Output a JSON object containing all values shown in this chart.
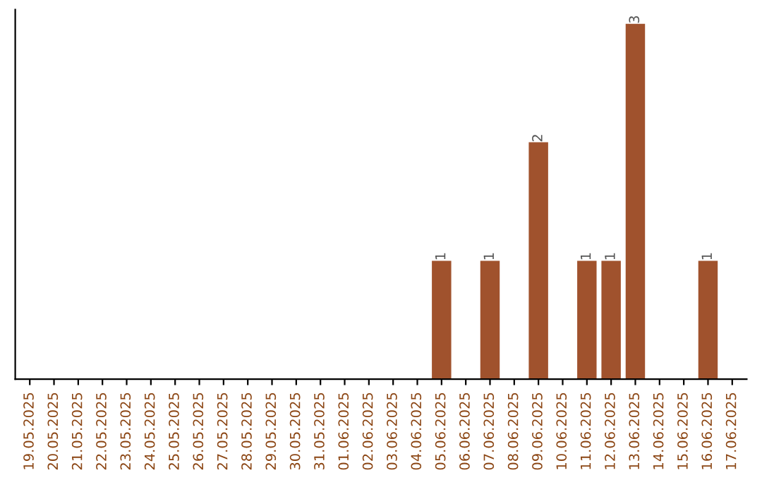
{
  "chart_data": {
    "type": "bar",
    "categories": [
      "19.05.2025",
      "20.05.2025",
      "21.05.2025",
      "22.05.2025",
      "23.05.2025",
      "24.05.2025",
      "25.05.2025",
      "26.05.2025",
      "27.05.2025",
      "28.05.2025",
      "29.05.2025",
      "30.05.2025",
      "31.05.2025",
      "01.06.2025",
      "02.06.2025",
      "03.06.2025",
      "04.06.2025",
      "05.06.2025",
      "06.06.2025",
      "07.06.2025",
      "08.06.2025",
      "09.06.2025",
      "10.06.2025",
      "11.06.2025",
      "12.06.2025",
      "13.06.2025",
      "14.06.2025",
      "15.06.2025",
      "16.06.2025",
      "17.06.2025"
    ],
    "values": [
      null,
      null,
      null,
      null,
      null,
      null,
      null,
      null,
      null,
      null,
      null,
      null,
      null,
      null,
      null,
      null,
      null,
      1,
      null,
      1,
      null,
      2,
      null,
      1,
      1,
      3,
      null,
      null,
      1,
      null
    ],
    "data_labels": true,
    "color": "#a0522d",
    "grid": false,
    "legend": false
  }
}
